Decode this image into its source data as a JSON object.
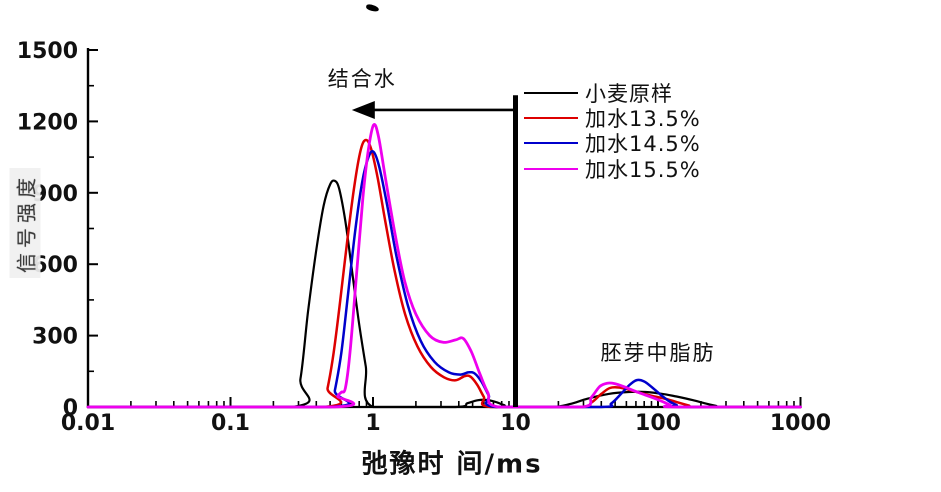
{
  "chart_data": {
    "type": "line",
    "title": "",
    "xlabel": "弛豫时 间/ms",
    "ylabel": "信号强度",
    "x_scale": "log",
    "x_range": [
      0.01,
      1000
    ],
    "y_range": [
      0,
      1500
    ],
    "x_ticks": [
      0.01,
      0.1,
      1,
      10,
      100,
      1000
    ],
    "y_ticks": [
      0,
      300,
      600,
      900,
      1200,
      1500
    ],
    "grid": false,
    "legend_position": "upper-right-inside",
    "series": [
      {
        "name": "小麦原样",
        "color": "#000000",
        "stroke_width": 2.2,
        "points": [
          [
            0.01,
            0
          ],
          [
            0.27,
            0
          ],
          [
            0.31,
            120
          ],
          [
            0.35,
            400
          ],
          [
            0.4,
            660
          ],
          [
            0.45,
            845
          ],
          [
            0.5,
            935
          ],
          [
            0.54,
            950
          ],
          [
            0.58,
            915
          ],
          [
            0.64,
            780
          ],
          [
            0.71,
            580
          ],
          [
            0.79,
            370
          ],
          [
            0.89,
            170
          ],
          [
            1.0,
            0
          ],
          [
            3.8,
            0
          ],
          [
            4.6,
            16
          ],
          [
            5.4,
            28
          ],
          [
            6.2,
            30
          ],
          [
            7.2,
            22
          ],
          [
            8.3,
            8
          ],
          [
            9.2,
            0
          ],
          [
            18,
            0
          ],
          [
            24,
            12
          ],
          [
            32,
            35
          ],
          [
            45,
            55
          ],
          [
            62,
            63
          ],
          [
            82,
            63
          ],
          [
            105,
            56
          ],
          [
            135,
            44
          ],
          [
            175,
            29
          ],
          [
            215,
            15
          ],
          [
            255,
            5
          ],
          [
            290,
            0
          ],
          [
            1000,
            0
          ]
        ]
      },
      {
        "name": "加水13.5%",
        "color": "#dd0000",
        "stroke_width": 2.5,
        "points": [
          [
            0.01,
            0
          ],
          [
            0.44,
            0
          ],
          [
            0.48,
            80
          ],
          [
            0.53,
            230
          ],
          [
            0.59,
            450
          ],
          [
            0.66,
            700
          ],
          [
            0.74,
            930
          ],
          [
            0.82,
            1080
          ],
          [
            0.89,
            1122
          ],
          [
            0.97,
            1085
          ],
          [
            1.08,
            960
          ],
          [
            1.22,
            780
          ],
          [
            1.42,
            570
          ],
          [
            1.68,
            390
          ],
          [
            2.05,
            255
          ],
          [
            2.55,
            168
          ],
          [
            3.15,
            125
          ],
          [
            3.8,
            112
          ],
          [
            4.4,
            130
          ],
          [
            4.85,
            127
          ],
          [
            5.4,
            92
          ],
          [
            6.0,
            42
          ],
          [
            6.7,
            0
          ],
          [
            28,
            0
          ],
          [
            34,
            18
          ],
          [
            40,
            55
          ],
          [
            46,
            80
          ],
          [
            53,
            82
          ],
          [
            62,
            73
          ],
          [
            75,
            59
          ],
          [
            92,
            46
          ],
          [
            115,
            33
          ],
          [
            140,
            18
          ],
          [
            165,
            6
          ],
          [
            180,
            0
          ],
          [
            1000,
            0
          ]
        ]
      },
      {
        "name": "加水14.5%",
        "color": "#0000cc",
        "stroke_width": 2.5,
        "points": [
          [
            0.01,
            0
          ],
          [
            0.5,
            0
          ],
          [
            0.54,
            70
          ],
          [
            0.6,
            230
          ],
          [
            0.67,
            480
          ],
          [
            0.75,
            740
          ],
          [
            0.84,
            945
          ],
          [
            0.93,
            1050
          ],
          [
            1.01,
            1072
          ],
          [
            1.11,
            1005
          ],
          [
            1.26,
            845
          ],
          [
            1.46,
            635
          ],
          [
            1.76,
            425
          ],
          [
            2.16,
            278
          ],
          [
            2.7,
            190
          ],
          [
            3.4,
            146
          ],
          [
            4.1,
            136
          ],
          [
            4.7,
            146
          ],
          [
            5.2,
            140
          ],
          [
            5.8,
            104
          ],
          [
            6.5,
            48
          ],
          [
            7.3,
            0
          ],
          [
            40,
            0
          ],
          [
            47,
            15
          ],
          [
            55,
            55
          ],
          [
            63,
            92
          ],
          [
            71,
            113
          ],
          [
            80,
            107
          ],
          [
            92,
            80
          ],
          [
            105,
            50
          ],
          [
            120,
            24
          ],
          [
            135,
            8
          ],
          [
            148,
            0
          ],
          [
            1000,
            0
          ]
        ]
      },
      {
        "name": "加水15.5%",
        "color": "#ee00ee",
        "stroke_width": 2.8,
        "points": [
          [
            0.01,
            0
          ],
          [
            0.54,
            0
          ],
          [
            0.565,
            45
          ],
          [
            0.6,
            62
          ],
          [
            0.64,
            80
          ],
          [
            0.69,
            230
          ],
          [
            0.76,
            530
          ],
          [
            0.85,
            880
          ],
          [
            0.93,
            1085
          ],
          [
            1.01,
            1185
          ],
          [
            1.09,
            1140
          ],
          [
            1.22,
            965
          ],
          [
            1.42,
            735
          ],
          [
            1.67,
            528
          ],
          [
            2.0,
            390
          ],
          [
            2.5,
            300
          ],
          [
            3.1,
            272
          ],
          [
            3.8,
            282
          ],
          [
            4.3,
            288
          ],
          [
            4.9,
            232
          ],
          [
            5.6,
            142
          ],
          [
            6.4,
            60
          ],
          [
            7.6,
            0
          ],
          [
            29,
            0
          ],
          [
            34,
            40
          ],
          [
            39,
            86
          ],
          [
            44,
            100
          ],
          [
            50,
            98
          ],
          [
            58,
            85
          ],
          [
            68,
            68
          ],
          [
            80,
            52
          ],
          [
            95,
            36
          ],
          [
            110,
            20
          ],
          [
            122,
            8
          ],
          [
            131,
            0
          ],
          [
            1000,
            0
          ]
        ]
      }
    ],
    "annotations": [
      {
        "id": "bound-water",
        "text": "结合水",
        "x": 0.84,
        "y": 1382
      },
      {
        "id": "germ-fat",
        "text": "胚芽中脂肪",
        "x": 100,
        "y": 231
      }
    ],
    "reference_line": {
      "x": 10,
      "y_from": 0,
      "y_to": 1310
    },
    "arrow": {
      "y": 1248,
      "x_from": 10,
      "x_to": 0.71,
      "direction": "left"
    }
  },
  "colors": {
    "axis": "#000000",
    "background": "#ffffff",
    "series_black": "#000000",
    "series_red": "#dd0000",
    "series_blue": "#0000cc",
    "series_magenta": "#ee00ee"
  }
}
